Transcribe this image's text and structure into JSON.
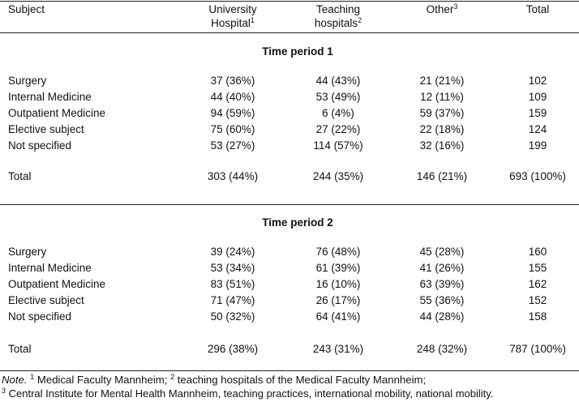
{
  "header": {
    "subject": "Subject",
    "col1_line1": "University",
    "col1_line2": "Hospital",
    "col1_sup": "1",
    "col2_line1": "Teaching",
    "col2_line2": "hospitals",
    "col2_sup": "2",
    "col3": "Other",
    "col3_sup": "3",
    "col4": "Total"
  },
  "period1": {
    "title": "Time period 1",
    "rows": [
      {
        "subject": "Surgery",
        "university": "37 (36%)",
        "teaching": "44 (43%)",
        "other": "21 (21%)",
        "total": "102"
      },
      {
        "subject": "Internal Medicine",
        "university": "44 (40%)",
        "teaching": "53 (49%)",
        "other": "12 (11%)",
        "total": "109"
      },
      {
        "subject": "Outpatient Medicine",
        "university": "94 (59%)",
        "teaching": "6 (4%)",
        "other": "59 (37%)",
        "total": "159"
      },
      {
        "subject": "Elective subject",
        "university": "75 (60%)",
        "teaching": "27 (22%)",
        "other": "22 (18%)",
        "total": "124"
      },
      {
        "subject": "Not specified",
        "university": "53 (27%)",
        "teaching": "114 (57%)",
        "other": "32 (16%)",
        "total": "199"
      }
    ],
    "total": {
      "subject": "Total",
      "university": "303 (44%)",
      "teaching": "244 (35%)",
      "other": "146 (21%)",
      "total": "693 (100%)"
    }
  },
  "period2": {
    "title": "Time period 2",
    "rows": [
      {
        "subject": "Surgery",
        "university": "39 (24%)",
        "teaching": "76 (48%)",
        "other": "45 (28%)",
        "total": "160"
      },
      {
        "subject": "Internal Medicine",
        "university": "53 (34%)",
        "teaching": "61 (39%)",
        "other": "41 (26%)",
        "total": "155"
      },
      {
        "subject": "Outpatient Medicine",
        "university": "83 (51%)",
        "teaching": "16 (10%)",
        "other": "63 (39%)",
        "total": "162"
      },
      {
        "subject": "Elective subject",
        "university": "71 (47%)",
        "teaching": "26 (17%)",
        "other": "55 (36%)",
        "total": "152"
      },
      {
        "subject": "Not specified",
        "university": "50 (32%)",
        "teaching": "64 (41%)",
        "other": "44 (28%)",
        "total": "158"
      }
    ],
    "total": {
      "subject": "Total",
      "university": "296 (38%)",
      "teaching": "243 (31%)",
      "other": "248 (32%)",
      "total": "787 (100%)"
    }
  },
  "note": {
    "prefix": "Note.",
    "sup1": "1",
    "text1": " Medical Faculty Mannheim; ",
    "sup2": "2",
    "text2": " teaching hospitals of the Medical Faculty Mannheim;",
    "sup3": "3",
    "text3": " Central Institute for Mental Health Mannheim, teaching practices, international mobility, national mobility."
  }
}
